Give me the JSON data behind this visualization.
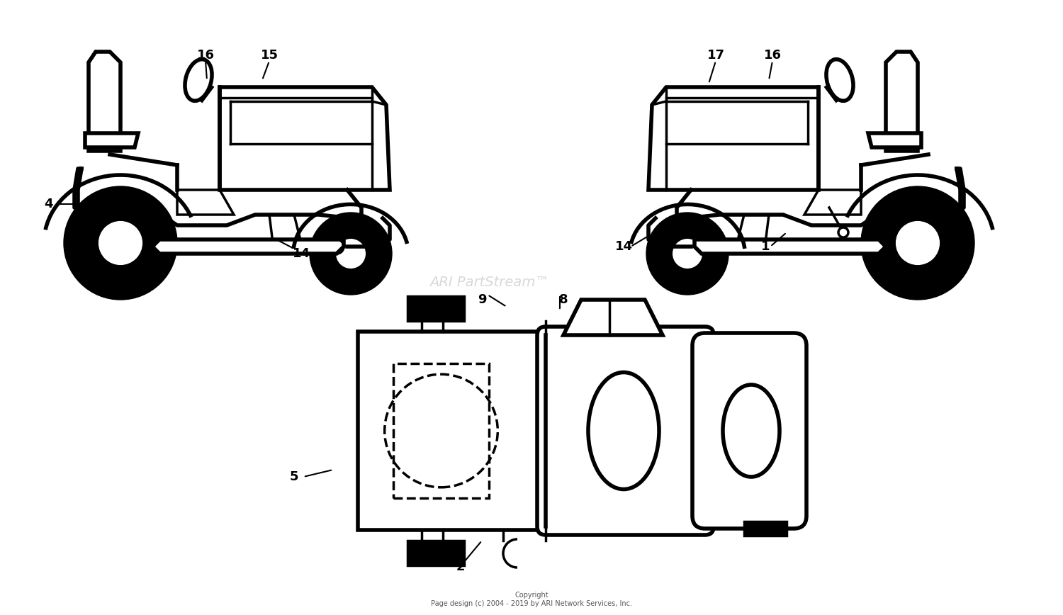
{
  "bg_color": "#ffffff",
  "line_color": "#000000",
  "copyright_text": "Copyright\nPage design (c) 2004 - 2019 by ARI Network Services, Inc.",
  "watermark_text": "ARI PartStream™",
  "lw": 2.5,
  "lw_thick": 4.0
}
